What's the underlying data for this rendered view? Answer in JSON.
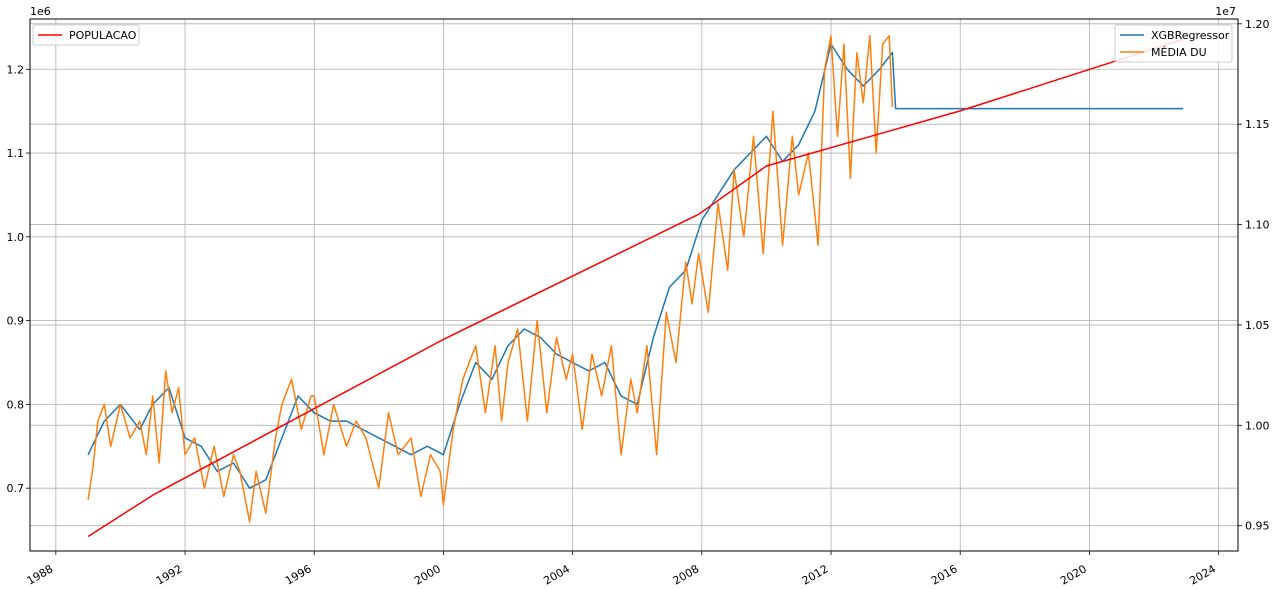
{
  "chart_data": {
    "type": "line",
    "title": "",
    "xlabel": "",
    "grid": true,
    "x_ticks": [
      "1988",
      "1992",
      "1996",
      "2000",
      "2004",
      "2008",
      "2012",
      "2016",
      "2020",
      "2024"
    ],
    "x_range": [
      1987.2,
      2024.6
    ],
    "left_axis": {
      "exponent_label": "1e6",
      "ticks": [
        0.7,
        0.8,
        0.9,
        1.0,
        1.1,
        1.2
      ],
      "tick_labels": [
        "0.7",
        "0.8",
        "0.9",
        "1.0",
        "1.1",
        "1.2"
      ],
      "range": [
        0.625,
        1.26
      ]
    },
    "right_axis": {
      "exponent_label": "1e7",
      "ticks": [
        0.95,
        1.0,
        1.05,
        1.1,
        1.15,
        1.2
      ],
      "tick_labels": [
        "0.95",
        "1.00",
        "1.05",
        "1.10",
        "1.15",
        "1.20"
      ],
      "range": [
        0.9374,
        1.2024
      ]
    },
    "legend_left": {
      "placement": "top-left",
      "entries": [
        {
          "label": "POPULACAO",
          "color": "#ff0000"
        }
      ]
    },
    "legend_right": {
      "placement": "top-right",
      "entries": [
        {
          "label": "XGBRegressor",
          "color": "#1f77b4"
        },
        {
          "label": "MÉDIA DU",
          "color": "#ff7f0e"
        }
      ]
    },
    "series": [
      {
        "name": "POPULACAO",
        "axis": "right",
        "color": "#ff0000",
        "x": [
          1989.0,
          1991.0,
          2000.0,
          2007.9,
          2010.0,
          2016.0,
          2022.9
        ],
        "values": [
          0.9446,
          0.9652,
          1.0428,
          1.1051,
          1.1292,
          1.1566,
          1.1923
        ]
      },
      {
        "name": "XGBRegressor",
        "axis": "left",
        "color": "#1f77b4",
        "x": [
          1989.0,
          1989.5,
          1990.0,
          1990.6,
          1991.0,
          1991.5,
          1992.0,
          1992.5,
          1993.0,
          1993.5,
          1994.0,
          1994.5,
          1995.0,
          1995.5,
          1996.0,
          1996.5,
          1997.0,
          1997.5,
          1998.0,
          1998.5,
          1999.0,
          1999.5,
          2000.0,
          2000.5,
          2001.0,
          2001.5,
          2002.0,
          2002.5,
          2003.0,
          2003.5,
          2004.0,
          2004.5,
          2005.0,
          2005.5,
          2006.0,
          2006.5,
          2007.0,
          2007.5,
          2008.0,
          2008.5,
          2009.0,
          2009.5,
          2010.0,
          2010.5,
          2011.0,
          2011.5,
          2012.0,
          2012.5,
          2013.0,
          2013.5,
          2013.9,
          2014.0,
          2018.0,
          2022.9
        ],
        "values": [
          0.74,
          0.78,
          0.8,
          0.77,
          0.8,
          0.82,
          0.76,
          0.75,
          0.72,
          0.73,
          0.7,
          0.71,
          0.76,
          0.81,
          0.79,
          0.78,
          0.78,
          0.77,
          0.76,
          0.75,
          0.74,
          0.75,
          0.74,
          0.8,
          0.85,
          0.83,
          0.87,
          0.89,
          0.88,
          0.86,
          0.85,
          0.84,
          0.85,
          0.81,
          0.8,
          0.88,
          0.94,
          0.96,
          1.02,
          1.05,
          1.08,
          1.1,
          1.12,
          1.09,
          1.11,
          1.15,
          1.23,
          1.2,
          1.18,
          1.2,
          1.22,
          1.153,
          1.153,
          1.153
        ]
      },
      {
        "name": "MÉDIA DU",
        "axis": "left",
        "color": "#ff7f0e",
        "x": [
          1989.0,
          1989.15,
          1989.3,
          1989.5,
          1989.7,
          1990.0,
          1990.3,
          1990.6,
          1990.8,
          1991.0,
          1991.2,
          1991.4,
          1991.6,
          1991.8,
          1992.0,
          1992.3,
          1992.6,
          1992.9,
          1993.2,
          1993.5,
          1993.7,
          1994.0,
          1994.2,
          1994.5,
          1994.8,
          1995.0,
          1995.3,
          1995.6,
          1995.9,
          1996.0,
          1996.3,
          1996.6,
          1997.0,
          1997.3,
          1997.6,
          1998.0,
          1998.3,
          1998.6,
          1999.0,
          1999.3,
          1999.6,
          1999.9,
          2000.0,
          2000.3,
          2000.6,
          2001.0,
          2001.3,
          2001.6,
          2001.8,
          2002.0,
          2002.3,
          2002.6,
          2002.9,
          2003.2,
          2003.5,
          2003.8,
          2004.0,
          2004.3,
          2004.6,
          2004.9,
          2005.2,
          2005.5,
          2005.8,
          2006.0,
          2006.3,
          2006.6,
          2006.9,
          2007.2,
          2007.5,
          2007.7,
          2007.9,
          2008.2,
          2008.5,
          2008.8,
          2009.0,
          2009.3,
          2009.6,
          2009.9,
          2010.2,
          2010.5,
          2010.8,
          2011.0,
          2011.3,
          2011.6,
          2011.8,
          2012.0,
          2012.2,
          2012.4,
          2012.6,
          2012.8,
          2013.0,
          2013.2,
          2013.4,
          2013.6,
          2013.8,
          2013.9
        ],
        "values": [
          0.686,
          0.725,
          0.78,
          0.8,
          0.75,
          0.8,
          0.76,
          0.78,
          0.74,
          0.81,
          0.73,
          0.84,
          0.79,
          0.82,
          0.74,
          0.76,
          0.7,
          0.75,
          0.69,
          0.74,
          0.72,
          0.66,
          0.72,
          0.67,
          0.76,
          0.8,
          0.83,
          0.77,
          0.81,
          0.81,
          0.74,
          0.8,
          0.75,
          0.78,
          0.76,
          0.7,
          0.79,
          0.74,
          0.76,
          0.69,
          0.74,
          0.72,
          0.68,
          0.77,
          0.83,
          0.87,
          0.79,
          0.87,
          0.78,
          0.85,
          0.89,
          0.78,
          0.9,
          0.79,
          0.88,
          0.83,
          0.86,
          0.77,
          0.86,
          0.81,
          0.87,
          0.74,
          0.83,
          0.79,
          0.87,
          0.74,
          0.91,
          0.85,
          0.97,
          0.92,
          0.98,
          0.91,
          1.04,
          0.96,
          1.08,
          1.0,
          1.12,
          0.98,
          1.15,
          0.99,
          1.12,
          1.05,
          1.1,
          0.99,
          1.2,
          1.24,
          1.12,
          1.23,
          1.07,
          1.22,
          1.16,
          1.24,
          1.1,
          1.23,
          1.24,
          1.155
        ]
      }
    ]
  }
}
